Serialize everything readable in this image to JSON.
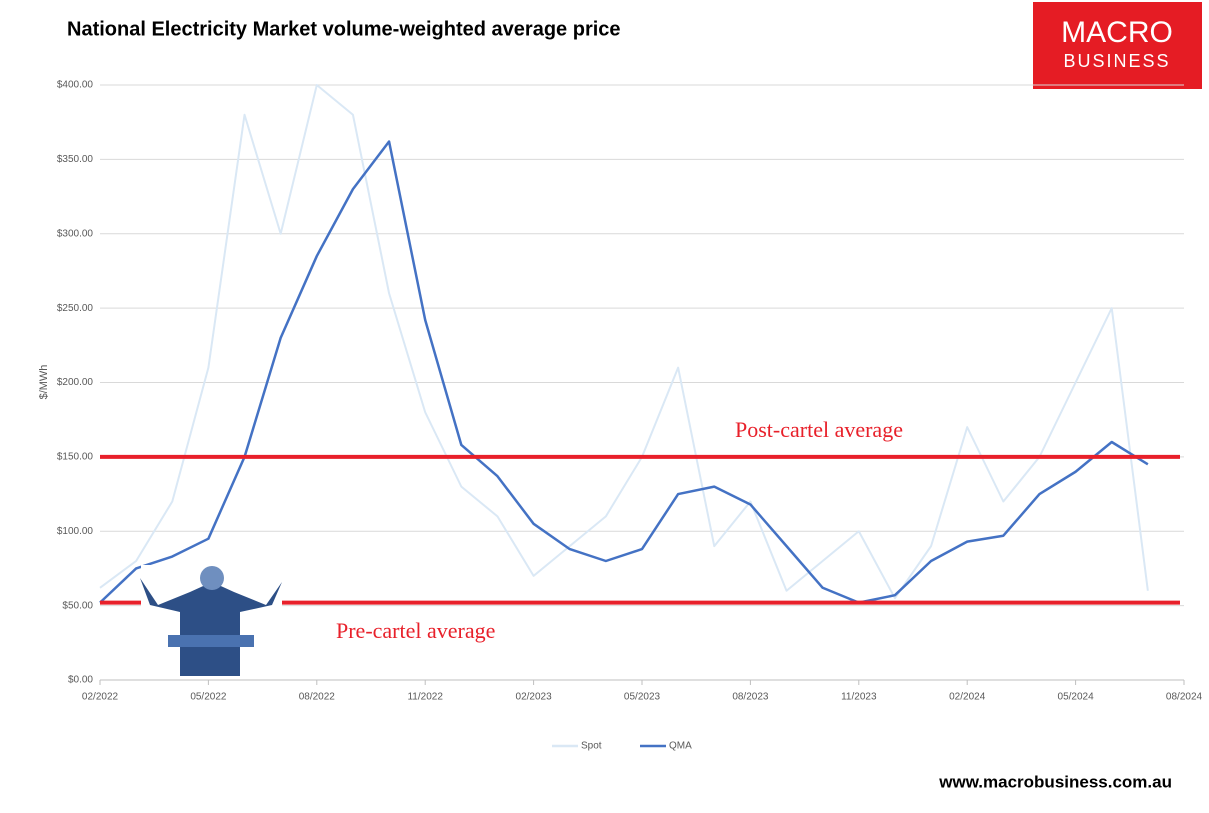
{
  "chart_data": {
    "type": "line",
    "title": "National Electricity Market volume-weighted average price",
    "y_label": "$/MWh",
    "x": [
      "2022-02",
      "2022-03",
      "2022-04",
      "2022-05",
      "2022-06",
      "2022-07",
      "2022-08",
      "2022-09",
      "2022-10",
      "2022-11",
      "2022-12",
      "2023-01",
      "2023-02",
      "2023-03",
      "2023-04",
      "2023-05",
      "2023-06",
      "2023-07",
      "2023-08",
      "2023-09",
      "2023-10",
      "2023-11",
      "2023-12",
      "2024-01",
      "2024-02",
      "2024-03",
      "2024-04",
      "2024-05",
      "2024-06",
      "2024-07"
    ],
    "series": [
      {
        "name": "Spot",
        "color": "#dae8f5",
        "values": [
          62,
          80,
          120,
          210,
          380,
          300,
          400,
          380,
          260,
          180,
          130,
          110,
          70,
          90,
          110,
          150,
          210,
          90,
          120,
          60,
          80,
          100,
          55,
          90,
          170,
          120,
          150,
          200,
          250,
          60
        ]
      },
      {
        "name": "QMA",
        "color": "#4472c4",
        "values": [
          52,
          75,
          83,
          95,
          150,
          230,
          285,
          330,
          362,
          242,
          158,
          137,
          105,
          88,
          80,
          88,
          125,
          130,
          118,
          90,
          62,
          52,
          57,
          80,
          93,
          97,
          125,
          140,
          160,
          145
        ]
      }
    ],
    "xlim": [
      "2022-02",
      "2024-08"
    ],
    "xticks": [
      {
        "value": "2022-02",
        "label": "02/2022"
      },
      {
        "value": "2022-05",
        "label": "05/2022"
      },
      {
        "value": "2022-08",
        "label": "08/2022"
      },
      {
        "value": "2022-11",
        "label": "11/2022"
      },
      {
        "value": "2023-02",
        "label": "02/2023"
      },
      {
        "value": "2023-05",
        "label": "05/2023"
      },
      {
        "value": "2023-08",
        "label": "08/2023"
      },
      {
        "value": "2023-11",
        "label": "11/2023"
      },
      {
        "value": "2024-02",
        "label": "02/2024"
      },
      {
        "value": "2024-05",
        "label": "05/2024"
      },
      {
        "value": "2024-08",
        "label": "08/2024"
      }
    ],
    "ylim": [
      0,
      400
    ],
    "yticks": [
      {
        "value": 0,
        "label": "$0.00"
      },
      {
        "value": 50,
        "label": "$50.00"
      },
      {
        "value": 100,
        "label": "$100.00"
      },
      {
        "value": 150,
        "label": "$150.00"
      },
      {
        "value": 200,
        "label": "$200.00"
      },
      {
        "value": 250,
        "label": "$250.00"
      },
      {
        "value": 300,
        "label": "$300.00"
      },
      {
        "value": 350,
        "label": "$350.00"
      },
      {
        "value": 400,
        "label": "$400.00"
      }
    ],
    "grid": true,
    "legend": "bottom",
    "reference_lines": [
      {
        "label": "Post-cartel average",
        "value": 150,
        "color": "#e8202a"
      },
      {
        "label": "Pre-cartel average",
        "value": 52,
        "color": "#e8202a"
      }
    ],
    "logo": [
      "MACRO",
      "BUSINESS"
    ],
    "footer": "www.macrobusiness.com.au"
  }
}
